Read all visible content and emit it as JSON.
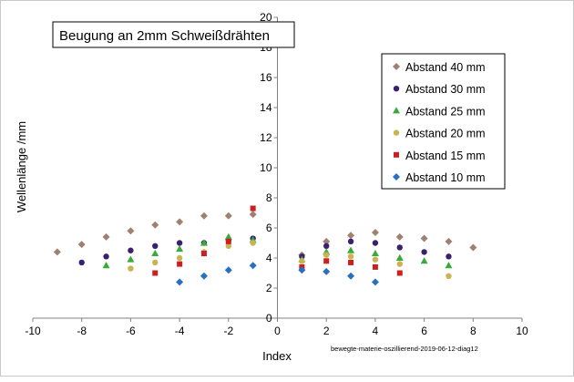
{
  "chart_data": {
    "type": "scatter",
    "title": "Beugung an 2mm Schweißdrähten",
    "xlabel": "Index",
    "ylabel": "Wellenlänge /mm",
    "xlim": [
      -10,
      10
    ],
    "ylim": [
      0,
      20
    ],
    "x_ticks": [
      "-10",
      "-8",
      "-6",
      "-4",
      "-2",
      "0",
      "2",
      "4",
      "6",
      "8",
      "10"
    ],
    "y_ticks": [
      "0",
      "2",
      "4",
      "6",
      "8",
      "10",
      "12",
      "14",
      "16",
      "18",
      "20"
    ],
    "grid": false,
    "legend_position": "top-right",
    "source_note": "bewegte-materie-oszillierend-2019-06-12-diag12",
    "series": [
      {
        "name": "Abstand 40 mm",
        "color": "#a08070",
        "marker": "diamond",
        "x": [
          -9,
          -8,
          -7,
          -6,
          -5,
          -4,
          -3,
          -2,
          -1,
          1,
          2,
          3,
          4,
          5,
          6,
          7,
          8
        ],
        "y": [
          4.4,
          4.9,
          5.4,
          5.8,
          6.2,
          6.4,
          6.8,
          6.8,
          6.9,
          4.2,
          5.1,
          5.5,
          5.7,
          5.4,
          5.3,
          5.1,
          4.7
        ]
      },
      {
        "name": "Abstand 30 mm",
        "color": "#3a2070",
        "marker": "circle",
        "x": [
          -8,
          -7,
          -6,
          -5,
          -4,
          -3,
          -2,
          -1,
          1,
          2,
          3,
          4,
          5,
          6,
          7
        ],
        "y": [
          3.7,
          4.1,
          4.5,
          4.8,
          5.0,
          5.0,
          5.2,
          5.3,
          4.1,
          4.8,
          5.1,
          5.0,
          4.7,
          4.4,
          4.1
        ]
      },
      {
        "name": "Abstand 25 mm",
        "color": "#3aaa3a",
        "marker": "triangle",
        "x": [
          -7,
          -6,
          -5,
          -4,
          -3,
          -2,
          -1,
          1,
          2,
          3,
          4,
          5,
          6,
          7
        ],
        "y": [
          3.5,
          3.9,
          4.3,
          4.6,
          5.0,
          5.4,
          5.2,
          3.9,
          4.4,
          4.5,
          4.3,
          4.0,
          3.8,
          3.5
        ]
      },
      {
        "name": "Abstand 20 mm",
        "color": "#c8b450",
        "marker": "circle",
        "x": [
          -6,
          -5,
          -4,
          -3,
          -2,
          -1,
          1,
          2,
          3,
          4,
          5,
          7
        ],
        "y": [
          3.3,
          3.7,
          4.0,
          4.4,
          4.8,
          5.0,
          3.8,
          4.2,
          4.1,
          3.9,
          3.6,
          2.8
        ]
      },
      {
        "name": "Abstand 15 mm",
        "color": "#cc2020",
        "marker": "square",
        "x": [
          -5,
          -4,
          -3,
          -2,
          -1,
          1,
          2,
          3,
          4,
          5
        ],
        "y": [
          3.0,
          3.6,
          4.3,
          5.1,
          7.3,
          3.4,
          3.8,
          3.7,
          3.4,
          3.0
        ]
      },
      {
        "name": "Abstand 10 mm",
        "color": "#2a70c0",
        "marker": "diamond",
        "x": [
          -4,
          -3,
          -2,
          -1,
          1,
          2,
          3,
          4
        ],
        "y": [
          2.4,
          2.8,
          3.2,
          3.5,
          3.2,
          3.1,
          2.8,
          2.4
        ]
      }
    ]
  }
}
